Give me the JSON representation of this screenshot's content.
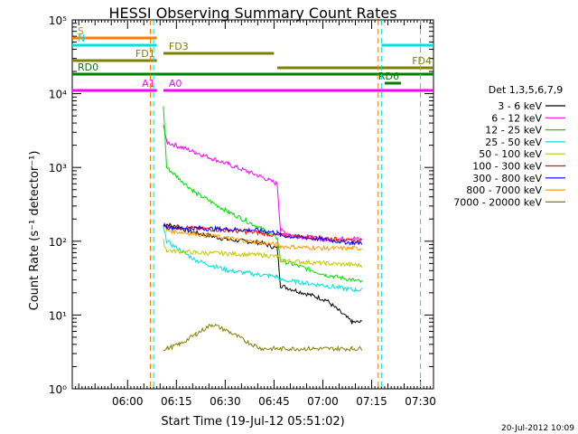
{
  "chart_data": {
    "type": "line",
    "title": "HESSI Observing Summary Count Rates",
    "xlabel": "Start Time (19-Jul-12 05:51:02)",
    "ylabel": "Count Rate (s⁻¹ detector⁻¹)",
    "y_scale": "log",
    "ylim": [
      1,
      100000
    ],
    "xlim_minutes": [
      -8,
      103
    ],
    "x_ticks": [
      "06:00",
      "06:15",
      "06:30",
      "06:45",
      "07:00",
      "07:15",
      "07:30"
    ],
    "x_tick_minutes": [
      9,
      24,
      39,
      54,
      69,
      84,
      99
    ],
    "y_ticks": [
      "10⁰",
      "10¹",
      "10²",
      "10³",
      "10⁴",
      "10⁵"
    ],
    "y_tick_values": [
      1,
      10,
      100,
      1000,
      10000,
      100000
    ],
    "legend_title": "Det 1,3,5,6,7,9",
    "legend_position": "right",
    "footer_date": "20-Jul-2012 10:09",
    "series": [
      {
        "name": "3 - 6 keV",
        "color": "#000000",
        "x": [
          20,
          21,
          30,
          40,
          50,
          55,
          56,
          70,
          78,
          81
        ],
        "y": [
          160,
          170,
          130,
          105,
          95,
          80,
          25,
          16,
          8,
          8
        ]
      },
      {
        "name": "6 - 12 keV",
        "color": "#ff00ff",
        "x": [
          20,
          21,
          30,
          40,
          50,
          55,
          56,
          60,
          70,
          78,
          81
        ],
        "y": [
          4000,
          2200,
          1600,
          1100,
          750,
          600,
          140,
          120,
          105,
          110,
          105
        ]
      },
      {
        "name": "12 - 25 keV",
        "color": "#00e000",
        "x": [
          20,
          21,
          25,
          30,
          40,
          50,
          55,
          56,
          70,
          78,
          81
        ],
        "y": [
          7000,
          1000,
          700,
          450,
          250,
          150,
          110,
          55,
          35,
          30,
          28
        ]
      },
      {
        "name": "25 - 50 keV",
        "color": "#00e0e0",
        "x": [
          20,
          21,
          30,
          40,
          50,
          55,
          56,
          70,
          78,
          81
        ],
        "y": [
          150,
          100,
          55,
          40,
          35,
          33,
          30,
          25,
          22,
          22
        ]
      },
      {
        "name": "50 - 100 keV",
        "color": "#c8c800",
        "x": [
          20,
          21,
          30,
          40,
          50,
          55,
          56,
          70,
          78,
          81
        ],
        "y": [
          100,
          75,
          70,
          68,
          65,
          62,
          55,
          50,
          48,
          47
        ]
      },
      {
        "name": "100 - 300 keV",
        "color": "#ff0000",
        "x": [
          20,
          21,
          30,
          40,
          50,
          55,
          56,
          70,
          78,
          81
        ],
        "y": [
          165,
          160,
          150,
          140,
          130,
          120,
          120,
          110,
          100,
          100
        ]
      },
      {
        "name": "300 - 800 keV",
        "color": "#0000ff",
        "x": [
          20,
          21,
          30,
          40,
          50,
          55,
          56,
          70,
          78,
          81
        ],
        "y": [
          170,
          155,
          150,
          145,
          140,
          130,
          120,
          105,
          95,
          95
        ]
      },
      {
        "name": "800 - 7000 keV",
        "color": "#ff9a00",
        "x": [
          20,
          21,
          30,
          40,
          50,
          55,
          56,
          70,
          78,
          81
        ],
        "y": [
          160,
          140,
          125,
          110,
          95,
          90,
          85,
          80,
          80,
          80
        ]
      },
      {
        "name": "7000 - 20000 keV",
        "color": "#808000",
        "x": [
          20,
          21,
          25,
          30,
          35,
          40,
          45,
          50,
          55,
          56,
          70,
          78,
          81
        ],
        "y": [
          3.5,
          3.5,
          4.0,
          5.5,
          7.5,
          6.0,
          4.5,
          3.5,
          3.5,
          3.5,
          3.5,
          3.5,
          3.5
        ]
      }
    ],
    "state_bars": [
      {
        "label": "S",
        "color": "#ff7f00",
        "segments": [
          [
            -8,
            18
          ]
        ]
      },
      {
        "label": "N",
        "color": "#00e0e0",
        "segments": [
          [
            -8,
            18
          ],
          [
            87,
            103
          ]
        ]
      },
      {
        "label": "FD1",
        "color": "#808000",
        "segments": [
          [
            -8,
            18
          ]
        ]
      },
      {
        "label": "FD3",
        "color": "#808000",
        "segments": [
          [
            20,
            54
          ]
        ]
      },
      {
        "label": "FD4",
        "color": "#808000",
        "segments": [
          [
            55,
            103
          ]
        ]
      },
      {
        "label": "RD0",
        "color": "#008000",
        "segments": [
          [
            -8,
            103
          ]
        ]
      },
      {
        "label": "RD6",
        "color": "#008000",
        "segments": [
          [
            88,
            93
          ]
        ]
      },
      {
        "label": "A1",
        "color": "#ff00ff",
        "segments": [
          [
            -8,
            18
          ]
        ]
      },
      {
        "label": "A0",
        "color": "#ff00ff",
        "segments": [
          [
            20,
            103
          ]
        ]
      }
    ]
  }
}
